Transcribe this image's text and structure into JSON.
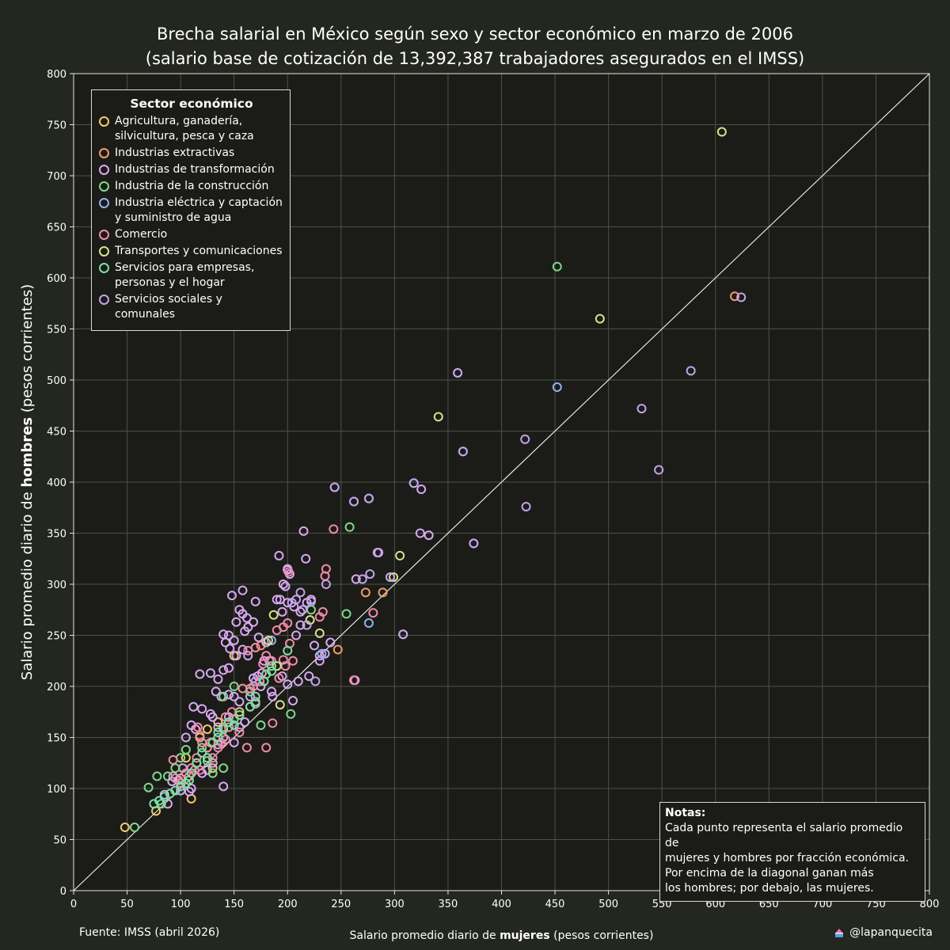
{
  "title": {
    "line1": "Brecha salarial en México según sexo y sector económico en marzo de 2006",
    "line2": "(salario base de cotización de 13,392,387 trabajadores asegurados en el IMSS)"
  },
  "footer": {
    "source": "Fuente: IMSS (abril 2026)",
    "handle": "@lapanquecita",
    "icon": "cake-icon"
  },
  "notes": {
    "heading": "Notas:",
    "body": "Cada punto representa el salario promedio de\nmujeres y hombres por fracción económica.\nPor encima de la diagonal ganan más\nlos hombres; por debajo, las mujeres."
  },
  "colors": {
    "background": "#23271f",
    "plot_background": "#1b1c18",
    "grid": "#4d5048",
    "text": "#ffffff"
  },
  "chart_data": {
    "type": "scatter",
    "xlabel": {
      "prefix": "Salario promedio diario de ",
      "bold": "mujeres",
      "suffix": " (pesos corrientes)"
    },
    "ylabel": {
      "prefix": "Salario promedio diario de ",
      "bold": "hombres",
      "suffix": " (pesos corrientes)"
    },
    "xlim": [
      0,
      800
    ],
    "ylim": [
      0,
      800
    ],
    "xticks": [
      0,
      50,
      100,
      150,
      200,
      250,
      300,
      350,
      400,
      450,
      500,
      550,
      600,
      650,
      700,
      750,
      800
    ],
    "yticks": [
      0,
      50,
      100,
      150,
      200,
      250,
      300,
      350,
      400,
      450,
      500,
      550,
      600,
      650,
      700,
      750,
      800
    ],
    "grid": true,
    "diagonal": true,
    "legend": {
      "title": "Sector económico",
      "placement": "top-left"
    },
    "series": [
      {
        "name": "Agricultura, ganadería,\nsilvicultura, pesca y caza",
        "color": "#f2c96b",
        "points": [
          [
            48,
            62
          ],
          [
            77,
            78
          ],
          [
            110,
            90
          ],
          [
            125,
            140
          ],
          [
            130,
            120
          ],
          [
            150,
            230
          ],
          [
            105,
            130
          ],
          [
            118,
            150
          ],
          [
            135,
            165
          ],
          [
            100,
            110
          ],
          [
            125,
            158
          ],
          [
            140,
            160
          ],
          [
            115,
            125
          ],
          [
            155,
            175
          ]
        ]
      },
      {
        "name": "Industrias extractivas",
        "color": "#f59b6a",
        "points": [
          [
            618,
            582
          ],
          [
            273,
            292
          ],
          [
            289,
            292
          ],
          [
            247,
            236
          ],
          [
            175,
            240
          ]
        ]
      },
      {
        "name": "Industrias de transformación",
        "color": "#d9a9f2",
        "points": [
          [
            359,
            507
          ],
          [
            364,
            430
          ],
          [
            318,
            399
          ],
          [
            325,
            393
          ],
          [
            324,
            350
          ],
          [
            332,
            348
          ],
          [
            374,
            340
          ],
          [
            262,
            381
          ],
          [
            244,
            395
          ],
          [
            276,
            384
          ],
          [
            285,
            331
          ],
          [
            264,
            305
          ],
          [
            296,
            307
          ],
          [
            308,
            251
          ],
          [
            263,
            206
          ],
          [
            215,
            352
          ],
          [
            217,
            325
          ],
          [
            192,
            328
          ],
          [
            200,
            314
          ],
          [
            202,
            310
          ],
          [
            198,
            298
          ],
          [
            196,
            300
          ],
          [
            190,
            285
          ],
          [
            200,
            282
          ],
          [
            206,
            278
          ],
          [
            212,
            273
          ],
          [
            195,
            273
          ],
          [
            170,
            283
          ],
          [
            168,
            263
          ],
          [
            162,
            267
          ],
          [
            158,
            271
          ],
          [
            155,
            275
          ],
          [
            148,
            289
          ],
          [
            158,
            294
          ],
          [
            152,
            263
          ],
          [
            160,
            254
          ],
          [
            163,
            258
          ],
          [
            145,
            250
          ],
          [
            140,
            251
          ],
          [
            142,
            243
          ],
          [
            146,
            237
          ],
          [
            150,
            245
          ],
          [
            173,
            248
          ],
          [
            180,
            243
          ],
          [
            178,
            225
          ],
          [
            172,
            210
          ],
          [
            168,
            208
          ],
          [
            163,
            230
          ],
          [
            158,
            236
          ],
          [
            152,
            230
          ],
          [
            145,
            218
          ],
          [
            140,
            216
          ],
          [
            135,
            207
          ],
          [
            128,
            213
          ],
          [
            118,
            212
          ],
          [
            120,
            178
          ],
          [
            112,
            180
          ],
          [
            110,
            162
          ],
          [
            114,
            158
          ],
          [
            105,
            150
          ],
          [
            102,
            120
          ],
          [
            98,
            108
          ],
          [
            92,
            107
          ],
          [
            85,
            94
          ],
          [
            88,
            85
          ],
          [
            93,
            112
          ],
          [
            100,
            98
          ],
          [
            108,
            97
          ],
          [
            110,
            100
          ],
          [
            120,
            115
          ],
          [
            125,
            118
          ],
          [
            130,
            125
          ],
          [
            135,
            143
          ],
          [
            140,
            150
          ],
          [
            150,
            145
          ],
          [
            155,
            160
          ],
          [
            160,
            165
          ],
          [
            165,
            180
          ],
          [
            150,
            190
          ],
          [
            145,
            192
          ],
          [
            138,
            190
          ],
          [
            133,
            195
          ],
          [
            128,
            173
          ],
          [
            130,
            170
          ],
          [
            135,
            160
          ],
          [
            140,
            102
          ],
          [
            145,
            170
          ],
          [
            155,
            185
          ],
          [
            165,
            190
          ],
          [
            175,
            200
          ],
          [
            185,
            195
          ],
          [
            195,
            210
          ],
          [
            200,
            202
          ],
          [
            205,
            186
          ],
          [
            210,
            205
          ],
          [
            220,
            210
          ],
          [
            230,
            225
          ],
          [
            235,
            232
          ],
          [
            240,
            243
          ],
          [
            200,
            315
          ],
          [
            208,
            250
          ],
          [
            212,
            260
          ],
          [
            218,
            282
          ],
          [
            222,
            285
          ],
          [
            225,
            240
          ],
          [
            230,
            230
          ],
          [
            193,
            285
          ],
          [
            186,
            190
          ],
          [
            176,
            213
          ],
          [
            183,
            225
          ],
          [
            170,
            185
          ]
        ]
      },
      {
        "name": "Industria de la construcción",
        "color": "#7ed98a",
        "points": [
          [
            452,
            611
          ],
          [
            258,
            356
          ],
          [
            255,
            271
          ],
          [
            222,
            275
          ],
          [
            203,
            173
          ],
          [
            175,
            162
          ],
          [
            165,
            195
          ],
          [
            170,
            183
          ],
          [
            180,
            212
          ],
          [
            150,
            168
          ],
          [
            140,
            120
          ],
          [
            130,
            115
          ],
          [
            125,
            127
          ],
          [
            120,
            140
          ],
          [
            110,
            120
          ],
          [
            105,
            138
          ],
          [
            95,
            120
          ],
          [
            88,
            112
          ],
          [
            82,
            85
          ],
          [
            78,
            112
          ],
          [
            70,
            101
          ],
          [
            57,
            62
          ],
          [
            100,
            130
          ],
          [
            140,
            190
          ],
          [
            150,
            200
          ]
        ]
      },
      {
        "name": "Industria eléctrica y captación\ny suministro de agua",
        "color": "#8fb2ea",
        "points": [
          [
            452,
            493
          ],
          [
            276,
            262
          ],
          [
            232,
            232
          ],
          [
            185,
            245
          ],
          [
            170,
            205
          ]
        ]
      },
      {
        "name": "Comercio",
        "color": "#f28aa8",
        "points": [
          [
            243,
            354
          ],
          [
            201,
            312
          ],
          [
            236,
            315
          ],
          [
            235,
            308
          ],
          [
            233,
            273
          ],
          [
            230,
            268
          ],
          [
            205,
            225
          ],
          [
            196,
            226
          ],
          [
            190,
            255
          ],
          [
            196,
            258
          ],
          [
            200,
            262
          ],
          [
            202,
            242
          ],
          [
            192,
            208
          ],
          [
            198,
            220
          ],
          [
            185,
            225
          ],
          [
            180,
            230
          ],
          [
            177,
            222
          ],
          [
            180,
            140
          ],
          [
            186,
            164
          ],
          [
            170,
            238
          ],
          [
            163,
            235
          ],
          [
            165,
            198
          ],
          [
            158,
            198
          ],
          [
            162,
            140
          ],
          [
            155,
            155
          ],
          [
            145,
            160
          ],
          [
            142,
            148
          ],
          [
            138,
            145
          ],
          [
            135,
            140
          ],
          [
            130,
            130
          ],
          [
            125,
            140
          ],
          [
            120,
            145
          ],
          [
            118,
            152
          ],
          [
            116,
            160
          ],
          [
            115,
            130
          ],
          [
            113,
            118
          ],
          [
            110,
            120
          ],
          [
            108,
            112
          ],
          [
            105,
            115
          ],
          [
            100,
            105
          ],
          [
            95,
            110
          ],
          [
            93,
            128
          ],
          [
            118,
            118
          ],
          [
            128,
            145
          ],
          [
            142,
            170
          ],
          [
            148,
            175
          ],
          [
            168,
            200
          ],
          [
            174,
            205
          ],
          [
            280,
            272
          ],
          [
            262,
            206
          ]
        ]
      },
      {
        "name": "Transportes y comunicaciones",
        "color": "#d6e38a",
        "points": [
          [
            606,
            743
          ],
          [
            492,
            560
          ],
          [
            341,
            464
          ],
          [
            305,
            328
          ],
          [
            299,
            307
          ],
          [
            230,
            252
          ],
          [
            221,
            265
          ],
          [
            193,
            182
          ],
          [
            190,
            220
          ],
          [
            187,
            270
          ],
          [
            182,
            245
          ]
        ]
      },
      {
        "name": "Servicios para empresas,\npersonas y el hogar",
        "color": "#7ee0a5",
        "points": [
          [
            200,
            235
          ],
          [
            185,
            220
          ],
          [
            165,
            180
          ],
          [
            150,
            162
          ],
          [
            140,
            158
          ],
          [
            135,
            150
          ],
          [
            130,
            145
          ],
          [
            120,
            135
          ],
          [
            115,
            125
          ],
          [
            110,
            115
          ],
          [
            108,
            108
          ],
          [
            105,
            105
          ],
          [
            100,
            102
          ],
          [
            95,
            98
          ],
          [
            90,
            95
          ],
          [
            85,
            92
          ],
          [
            80,
            88
          ],
          [
            75,
            85
          ],
          [
            125,
            130
          ],
          [
            135,
            155
          ],
          [
            145,
            165
          ],
          [
            155,
            172
          ],
          [
            170,
            190
          ],
          [
            178,
            205
          ],
          [
            185,
            215
          ]
        ]
      },
      {
        "name": "Servicios sociales y comunales",
        "color": "#c3a3ec",
        "points": [
          [
            624,
            581
          ],
          [
            577,
            509
          ],
          [
            531,
            472
          ],
          [
            547,
            412
          ],
          [
            422,
            442
          ],
          [
            423,
            376
          ],
          [
            359,
            507
          ],
          [
            318,
            399
          ],
          [
            364,
            430
          ],
          [
            374,
            340
          ],
          [
            296,
            307
          ],
          [
            308,
            251
          ],
          [
            284,
            331
          ],
          [
            276,
            384
          ],
          [
            262,
            381
          ],
          [
            244,
            395
          ],
          [
            277,
            310
          ],
          [
            270,
            305
          ],
          [
            226,
            205
          ],
          [
            236,
            300
          ],
          [
            222,
            283
          ],
          [
            214,
            275
          ],
          [
            208,
            285
          ],
          [
            204,
            282
          ],
          [
            212,
            292
          ],
          [
            218,
            260
          ]
        ]
      }
    ]
  }
}
